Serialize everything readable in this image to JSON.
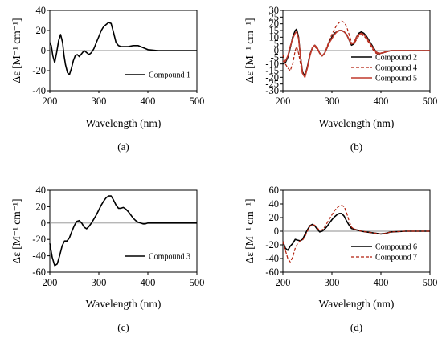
{
  "chart_data": [
    {
      "type": "line",
      "panel_label": "(a)",
      "xlabel": "Wavelength (nm)",
      "ylabel": "Δε [M⁻¹ cm⁻¹]",
      "xlim": [
        200,
        500
      ],
      "ylim": [
        -40,
        40
      ],
      "xticks": [
        200,
        300,
        400,
        500
      ],
      "yticks": [
        40,
        20,
        0,
        -20,
        -40
      ],
      "legend_position": "bottom-right",
      "series": [
        {
          "name": "Compound 1",
          "color": "#000000",
          "dash": "solid",
          "x": [
            200,
            203,
            206,
            210,
            214,
            218,
            222,
            226,
            229,
            232,
            236,
            240,
            244,
            248,
            252,
            256,
            260,
            265,
            270,
            275,
            280,
            285,
            290,
            295,
            300,
            305,
            310,
            315,
            320,
            325,
            330,
            335,
            340,
            345,
            350,
            355,
            360,
            370,
            380,
            390,
            400,
            420,
            450,
            500
          ],
          "y": [
            8,
            5,
            -5,
            -12,
            -2,
            10,
            16,
            8,
            -5,
            -14,
            -22,
            -24,
            -18,
            -10,
            -5,
            -4,
            -6,
            -3,
            0,
            -2,
            -4,
            -2,
            2,
            8,
            14,
            20,
            24,
            26,
            28,
            27,
            18,
            8,
            5,
            4,
            4,
            4,
            4,
            5,
            5,
            3,
            1,
            0,
            0,
            0
          ]
        }
      ]
    },
    {
      "type": "line",
      "panel_label": "(b)",
      "xlabel": "Wavelength (nm)",
      "ylabel": "Δε [M⁻¹ cm⁻¹]",
      "xlim": [
        200,
        500
      ],
      "ylim": [
        -30,
        30
      ],
      "xticks": [
        200,
        300,
        400,
        500
      ],
      "yticks": [
        30,
        25,
        20,
        15,
        10,
        5,
        0,
        -5,
        -10,
        -15,
        -20,
        -25,
        -30
      ],
      "legend_position": "bottom-right",
      "series": [
        {
          "name": "Compound 2",
          "color": "#000000",
          "dash": "solid",
          "x": [
            200,
            205,
            210,
            215,
            220,
            225,
            228,
            232,
            236,
            240,
            245,
            250,
            255,
            260,
            265,
            270,
            275,
            280,
            285,
            290,
            295,
            300,
            305,
            310,
            315,
            320,
            325,
            330,
            335,
            340,
            345,
            350,
            355,
            360,
            365,
            370,
            375,
            380,
            385,
            390,
            395,
            400,
            410,
            420,
            450,
            500
          ],
          "y": [
            -10,
            -9,
            -5,
            2,
            10,
            15,
            16,
            10,
            -5,
            -16,
            -19,
            -12,
            -3,
            2,
            4,
            2,
            -2,
            -4,
            -2,
            2,
            7,
            10,
            13,
            14,
            15,
            15,
            14,
            12,
            8,
            4,
            5,
            10,
            13,
            14,
            13,
            11,
            8,
            5,
            2,
            -1,
            -2,
            -2,
            -1,
            0,
            0,
            0
          ]
        },
        {
          "name": "Compound 4",
          "color": "#b21f0c",
          "dash": "dashed",
          "x": [
            200,
            205,
            210,
            215,
            220,
            225,
            228,
            232,
            236,
            240,
            245,
            250,
            255,
            260,
            265,
            270,
            275,
            280,
            285,
            290,
            295,
            300,
            305,
            310,
            315,
            320,
            325,
            330,
            335,
            340,
            345,
            350,
            355,
            360,
            365,
            370,
            375,
            380,
            385,
            390,
            395,
            400,
            410,
            420,
            450,
            500
          ],
          "y": [
            -3,
            -10,
            -13,
            -15,
            -10,
            0,
            3,
            -2,
            -10,
            -18,
            -19,
            -12,
            -3,
            2,
            3,
            1,
            -2,
            -4,
            -2,
            3,
            8,
            12,
            16,
            19,
            21,
            22,
            21,
            18,
            12,
            6,
            5,
            8,
            11,
            12,
            11,
            9,
            6,
            3,
            0,
            -2,
            -3,
            -2,
            -1,
            0,
            0,
            0
          ]
        },
        {
          "name": "Compound 5",
          "color": "#c0392b",
          "dash": "solid",
          "x": [
            200,
            205,
            210,
            215,
            220,
            225,
            228,
            232,
            236,
            240,
            245,
            250,
            255,
            260,
            265,
            270,
            275,
            280,
            285,
            290,
            295,
            300,
            305,
            310,
            315,
            320,
            325,
            330,
            335,
            340,
            345,
            350,
            355,
            360,
            365,
            370,
            375,
            380,
            385,
            390,
            395,
            400,
            410,
            420,
            450,
            500
          ],
          "y": [
            -8,
            -8,
            -4,
            3,
            9,
            13,
            14,
            9,
            -5,
            -17,
            -20,
            -13,
            -4,
            2,
            4,
            2,
            -2,
            -4,
            -2,
            2,
            6,
            9,
            12,
            14,
            15,
            15,
            14,
            12,
            8,
            5,
            6,
            10,
            12,
            13,
            12,
            10,
            7,
            4,
            1,
            -1,
            -2,
            -2,
            -1,
            0,
            0,
            0
          ]
        }
      ]
    },
    {
      "type": "line",
      "panel_label": "(c)",
      "xlabel": "Wavelength (nm)",
      "ylabel": "Δε [M⁻¹ cm⁻¹]",
      "xlim": [
        200,
        500
      ],
      "ylim": [
        -60,
        40
      ],
      "xticks": [
        200,
        300,
        400,
        500
      ],
      "yticks": [
        40,
        20,
        0,
        -20,
        -40,
        -60
      ],
      "legend_position": "bottom-right",
      "series": [
        {
          "name": "Compound 3",
          "color": "#000000",
          "dash": "solid",
          "x": [
            200,
            205,
            210,
            215,
            220,
            225,
            230,
            235,
            240,
            245,
            250,
            255,
            260,
            265,
            270,
            275,
            280,
            285,
            290,
            295,
            300,
            305,
            310,
            315,
            320,
            325,
            330,
            335,
            340,
            345,
            350,
            355,
            360,
            365,
            370,
            375,
            380,
            385,
            390,
            395,
            400,
            420,
            450,
            500
          ],
          "y": [
            -25,
            -42,
            -52,
            -50,
            -40,
            -28,
            -22,
            -22,
            -18,
            -10,
            -3,
            2,
            3,
            0,
            -5,
            -7,
            -4,
            0,
            5,
            10,
            16,
            22,
            27,
            31,
            33,
            33,
            28,
            22,
            18,
            18,
            19,
            17,
            14,
            10,
            6,
            3,
            1,
            0,
            -1,
            -1,
            0,
            0,
            0,
            0
          ]
        }
      ]
    },
    {
      "type": "line",
      "panel_label": "(d)",
      "xlabel": "Wavelength (nm)",
      "ylabel": "Δε [M⁻¹ cm⁻¹]",
      "xlim": [
        200,
        500
      ],
      "ylim": [
        -60,
        60
      ],
      "xticks": [
        200,
        300,
        400,
        500
      ],
      "yticks": [
        60,
        40,
        20,
        0,
        -20,
        -40,
        -60
      ],
      "legend_position": "bottom-right",
      "series": [
        {
          "name": "Compound 6",
          "color": "#000000",
          "dash": "solid",
          "x": [
            200,
            205,
            210,
            215,
            220,
            225,
            230,
            235,
            240,
            245,
            250,
            255,
            260,
            265,
            270,
            275,
            280,
            285,
            290,
            295,
            300,
            305,
            310,
            315,
            320,
            325,
            330,
            335,
            340,
            345,
            350,
            355,
            360,
            370,
            380,
            390,
            400,
            410,
            420,
            450,
            500
          ],
          "y": [
            -15,
            -25,
            -28,
            -22,
            -18,
            -12,
            -13,
            -14,
            -12,
            -5,
            2,
            8,
            10,
            8,
            3,
            -1,
            0,
            3,
            7,
            12,
            17,
            21,
            24,
            26,
            26,
            22,
            15,
            9,
            4,
            3,
            2,
            1,
            0,
            -1,
            -2,
            -3,
            -4,
            -3,
            -1,
            0,
            0
          ]
        },
        {
          "name": "Compound 7",
          "color": "#b21f0c",
          "dash": "dashed",
          "x": [
            200,
            205,
            210,
            215,
            220,
            225,
            230,
            235,
            240,
            245,
            250,
            255,
            260,
            265,
            270,
            275,
            280,
            285,
            290,
            295,
            300,
            305,
            310,
            315,
            320,
            325,
            330,
            335,
            340,
            345,
            350,
            355,
            360,
            370,
            380,
            390,
            400,
            410,
            420,
            450,
            500
          ],
          "y": [
            -15,
            -28,
            -40,
            -45,
            -38,
            -25,
            -18,
            -14,
            -13,
            -8,
            0,
            7,
            10,
            9,
            5,
            1,
            2,
            6,
            12,
            18,
            24,
            30,
            34,
            37,
            38,
            36,
            27,
            15,
            6,
            3,
            2,
            1,
            0,
            -1,
            -2,
            -3,
            -4,
            -3,
            -1,
            0,
            0
          ]
        }
      ]
    }
  ]
}
